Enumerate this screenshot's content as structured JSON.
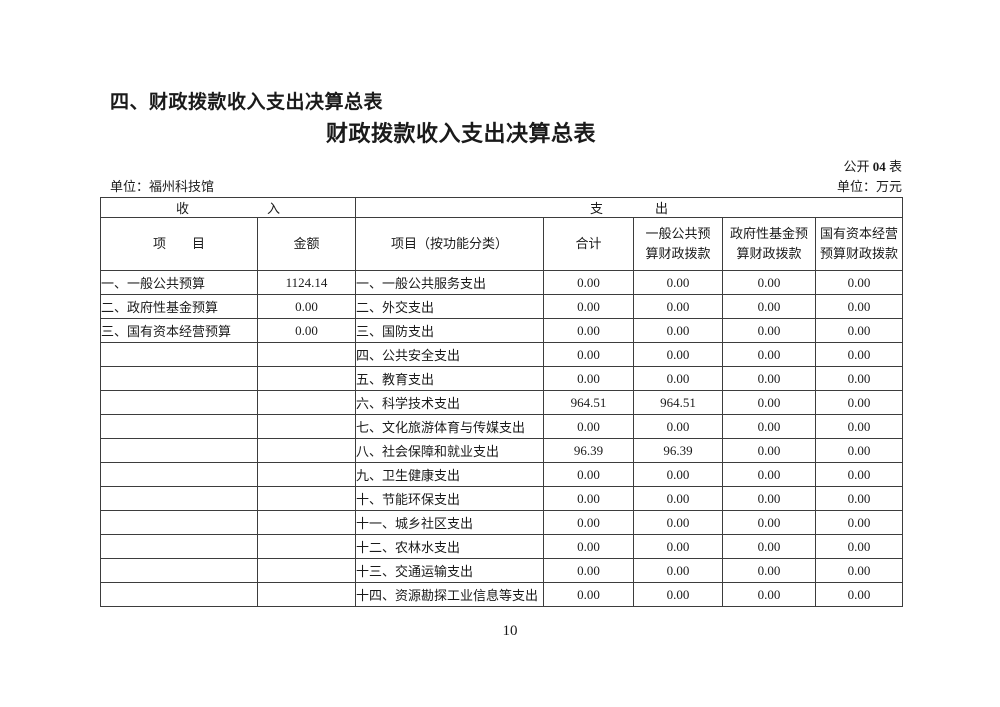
{
  "page": {
    "section_heading": "四、财政拨款收入支出决算总表",
    "table_title": "财政拨款收入支出决算总表",
    "code_prefix": "公开 ",
    "code_number": "04",
    "code_suffix": " 表",
    "unit_left": "单位：福州科技馆",
    "unit_right": "单位：万元",
    "page_number": "10"
  },
  "table": {
    "income_group": "收　　　　　　入",
    "expenditure_group": "支　　　　出",
    "columns": [
      "项　　目",
      "金额",
      "项目（按功能分类）",
      "合计",
      "一般公共预\n算财政拨款",
      "政府性基金预\n算财政拨款",
      "国有资本经营\n预算财政拨款"
    ],
    "rows": [
      [
        "一、一般公共预算",
        "1124.14",
        "一、一般公共服务支出",
        "0.00",
        "0.00",
        "0.00",
        "0.00"
      ],
      [
        "二、政府性基金预算",
        "0.00",
        "二、外交支出",
        "0.00",
        "0.00",
        "0.00",
        "0.00"
      ],
      [
        "三、国有资本经营预算",
        "0.00",
        "三、国防支出",
        "0.00",
        "0.00",
        "0.00",
        "0.00"
      ],
      [
        "",
        "",
        "四、公共安全支出",
        "0.00",
        "0.00",
        "0.00",
        "0.00"
      ],
      [
        "",
        "",
        "五、教育支出",
        "0.00",
        "0.00",
        "0.00",
        "0.00"
      ],
      [
        "",
        "",
        "六、科学技术支出",
        "964.51",
        "964.51",
        "0.00",
        "0.00"
      ],
      [
        "",
        "",
        "七、文化旅游体育与传媒支出",
        "0.00",
        "0.00",
        "0.00",
        "0.00"
      ],
      [
        "",
        "",
        "八、社会保障和就业支出",
        "96.39",
        "96.39",
        "0.00",
        "0.00"
      ],
      [
        "",
        "",
        "九、卫生健康支出",
        "0.00",
        "0.00",
        "0.00",
        "0.00"
      ],
      [
        "",
        "",
        "十、节能环保支出",
        "0.00",
        "0.00",
        "0.00",
        "0.00"
      ],
      [
        "",
        "",
        "十一、城乡社区支出",
        "0.00",
        "0.00",
        "0.00",
        "0.00"
      ],
      [
        "",
        "",
        "十二、农林水支出",
        "0.00",
        "0.00",
        "0.00",
        "0.00"
      ],
      [
        "",
        "",
        "十三、交通运输支出",
        "0.00",
        "0.00",
        "0.00",
        "0.00"
      ],
      [
        "",
        "",
        "十四、资源勘探工业信息等支出",
        "0.00",
        "0.00",
        "0.00",
        "0.00"
      ]
    ]
  }
}
